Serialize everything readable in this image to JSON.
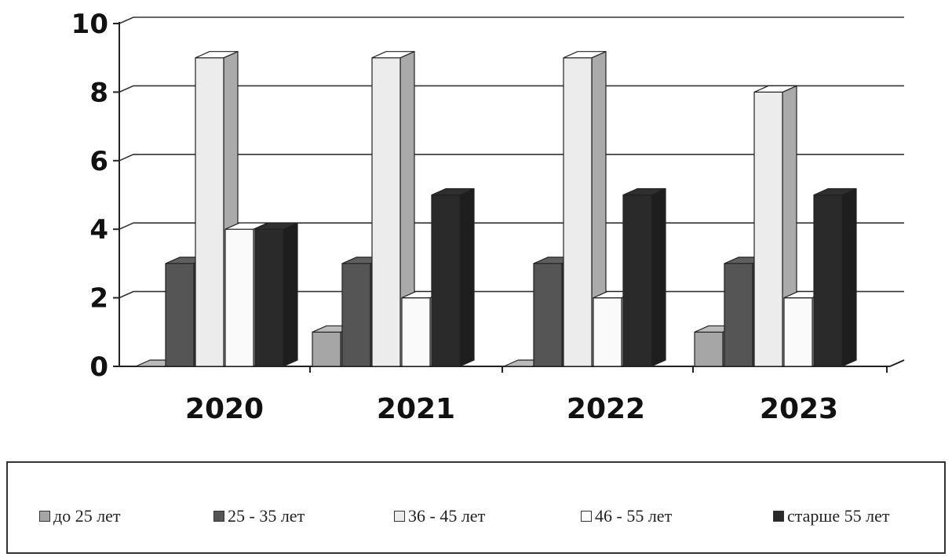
{
  "chart_data": {
    "type": "bar",
    "categories": [
      "2020",
      "2021",
      "2022",
      "2023"
    ],
    "series": [
      {
        "name": "до 25 лет",
        "values": [
          0,
          1,
          0,
          1
        ],
        "color": "#a6a6a6"
      },
      {
        "name": "25 - 35 лет",
        "values": [
          3,
          3,
          3,
          3
        ],
        "color": "#555555"
      },
      {
        "name": "36 - 45 лет",
        "values": [
          9,
          9,
          9,
          8
        ],
        "color": "#ececec"
      },
      {
        "name": "46 - 55 лет",
        "values": [
          4,
          2,
          2,
          2
        ],
        "color": "#fafafa"
      },
      {
        "name": "старше 55 лет",
        "values": [
          4,
          5,
          5,
          5
        ],
        "color": "#2a2a2a"
      }
    ],
    "title": "",
    "xlabel": "",
    "ylabel": "",
    "ylim": [
      0,
      10
    ],
    "yticks": [
      "0",
      "2",
      "4",
      "6",
      "8",
      "10"
    ],
    "grid": true,
    "legend_position": "bottom",
    "style": "3d-clustered-column"
  }
}
